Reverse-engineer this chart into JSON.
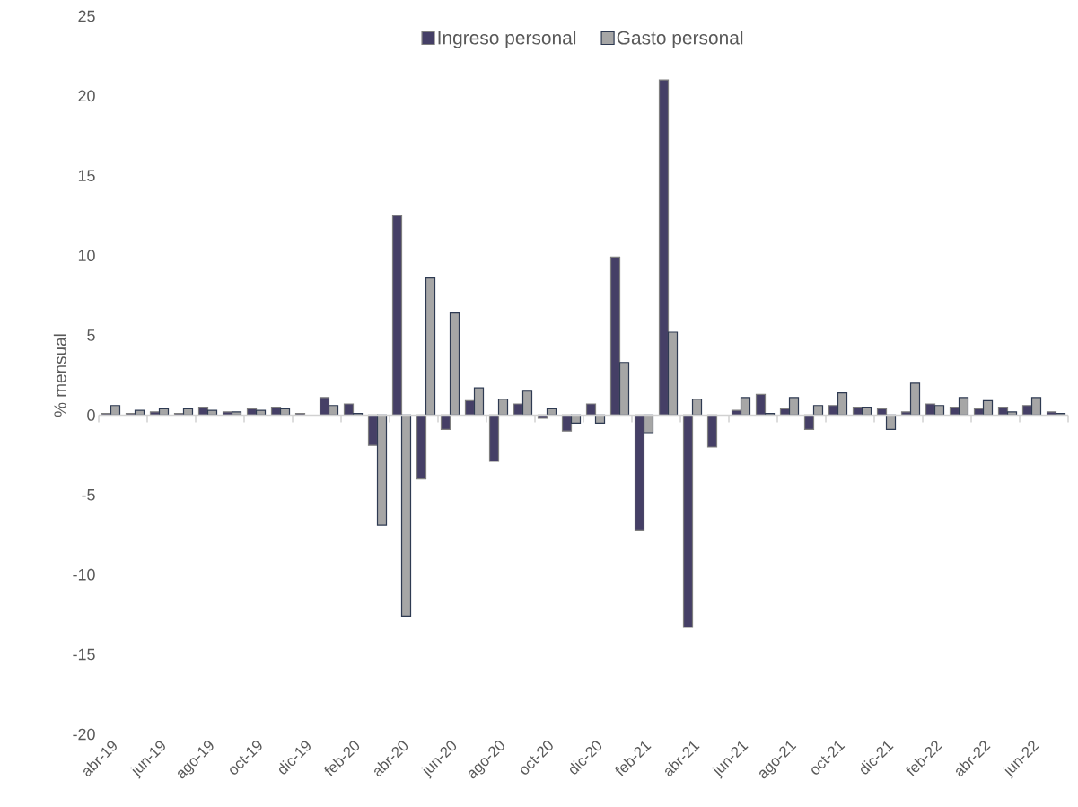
{
  "chart_data": {
    "type": "bar",
    "ylabel": "% mensual",
    "ylim": [
      -20,
      25
    ],
    "yticks": [
      -20,
      -15,
      -10,
      -5,
      0,
      5,
      10,
      15,
      20,
      25
    ],
    "legend": "top",
    "categories": [
      "abr-19",
      null,
      "jun-19",
      null,
      "ago-19",
      null,
      "oct-19",
      null,
      "dic-19",
      null,
      "feb-20",
      null,
      "abr-20",
      null,
      "jun-20",
      null,
      "ago-20",
      null,
      "oct-20",
      null,
      "dic-20",
      null,
      "feb-21",
      null,
      "abr-21",
      null,
      "jun-21",
      null,
      "ago-21",
      null,
      "oct-21",
      null,
      "dic-21",
      null,
      "feb-22",
      null,
      "abr-22",
      null,
      "jun-22",
      null
    ],
    "series": [
      {
        "name": "Ingreso personal",
        "color": "#453f66",
        "values": [
          0.1,
          0.1,
          0.2,
          0.1,
          0.5,
          0.2,
          0.4,
          0.5,
          0.1,
          1.1,
          0.7,
          -1.9,
          12.5,
          -4.0,
          -0.9,
          0.9,
          -2.9,
          0.7,
          -0.2,
          -1.0,
          0.7,
          9.9,
          -7.2,
          21.0,
          -13.3,
          -2.0,
          0.3,
          1.3,
          0.4,
          -0.9,
          0.6,
          0.5,
          0.4,
          0.2,
          0.7,
          0.5,
          0.4,
          0.5,
          0.6,
          0.2
        ]
      },
      {
        "name": "Gasto personal",
        "color": "#a6a6a6",
        "values": [
          0.6,
          0.3,
          0.4,
          0.4,
          0.3,
          0.2,
          0.3,
          0.4,
          null,
          0.6,
          0.1,
          -6.9,
          -12.6,
          8.6,
          6.4,
          1.7,
          1.0,
          1.5,
          0.4,
          -0.5,
          -0.5,
          3.3,
          -1.1,
          5.2,
          1.0,
          null,
          1.1,
          0.1,
          1.1,
          0.6,
          1.4,
          0.5,
          -0.9,
          2.0,
          0.6,
          1.1,
          0.9,
          0.2,
          1.1,
          0.1
        ]
      }
    ]
  }
}
